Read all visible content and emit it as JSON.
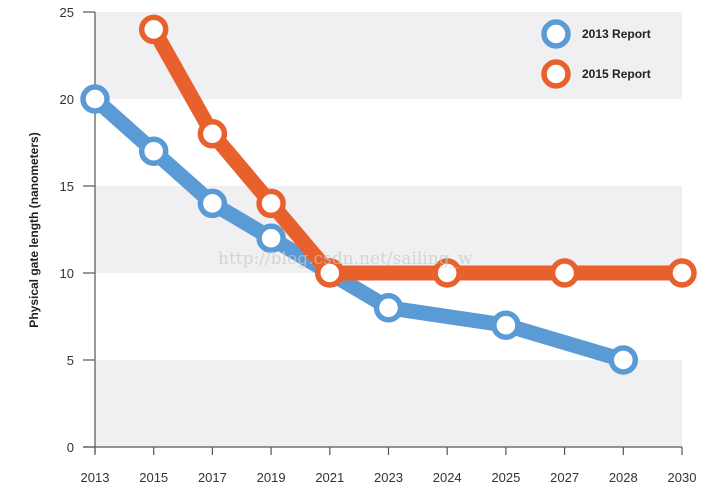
{
  "chart_data": {
    "type": "line",
    "title": "",
    "xlabel": "",
    "ylabel": "Physical gate length (nanometers)",
    "categories": [
      "2013",
      "2015",
      "2017",
      "2019",
      "2021",
      "2023",
      "2024",
      "2025",
      "2027",
      "2028",
      "2030"
    ],
    "yticks": [
      "0",
      "5",
      "10",
      "15",
      "20",
      "25"
    ],
    "ylim": [
      0,
      25
    ],
    "grid": "alternating horizontal bands",
    "legend_position": "top-right",
    "series": [
      {
        "name": "2013 Report",
        "color": "#5b9bd5",
        "points": [
          {
            "x": "2013",
            "y": 20
          },
          {
            "x": "2015",
            "y": 17
          },
          {
            "x": "2017",
            "y": 14
          },
          {
            "x": "2019",
            "y": 12
          },
          {
            "x": "2021",
            "y": 10
          },
          {
            "x": "2023",
            "y": 8
          },
          {
            "x": "2025",
            "y": 7
          },
          {
            "x": "2028",
            "y": 5
          }
        ]
      },
      {
        "name": "2015 Report",
        "color": "#e8612c",
        "points": [
          {
            "x": "2015",
            "y": 24
          },
          {
            "x": "2017",
            "y": 18
          },
          {
            "x": "2019",
            "y": 14
          },
          {
            "x": "2021",
            "y": 10
          },
          {
            "x": "2024",
            "y": 10
          },
          {
            "x": "2027",
            "y": 10
          },
          {
            "x": "2030",
            "y": 10
          }
        ]
      }
    ]
  },
  "watermark": "http://blog.csdn.net/sailing_w"
}
